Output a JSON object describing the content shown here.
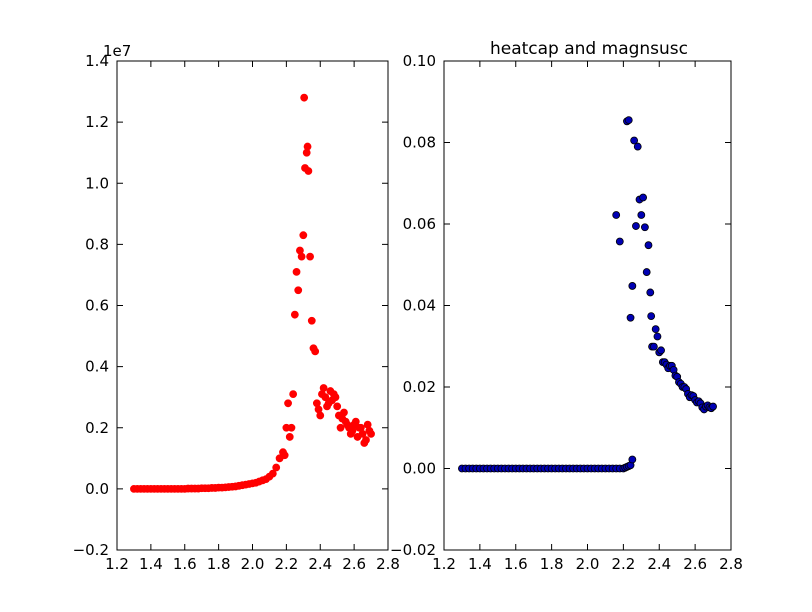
{
  "chart_data": [
    {
      "type": "scatter",
      "title": "",
      "xlabel": "",
      "ylabel": "",
      "xlim": [
        1.2,
        2.8
      ],
      "ylim": [
        -0.2,
        1.4
      ],
      "y_multiplier_label": "1e7",
      "x_ticks": [
        "1.2",
        "1.4",
        "1.6",
        "1.8",
        "2.0",
        "2.2",
        "2.4",
        "2.6",
        "2.8"
      ],
      "y_ticks": [
        "−0.2",
        "0.0",
        "0.2",
        "0.4",
        "0.6",
        "0.8",
        "1.0",
        "1.2",
        "1.4"
      ],
      "marker_color": "#ff0000",
      "marker_edge": "#ff0000",
      "grid": false,
      "series": [
        {
          "x": [
            1.3,
            1.32,
            1.34,
            1.36,
            1.38,
            1.4,
            1.42,
            1.44,
            1.46,
            1.48,
            1.5,
            1.52,
            1.54,
            1.56,
            1.58,
            1.6,
            1.62,
            1.64,
            1.66,
            1.68,
            1.7,
            1.72,
            1.74,
            1.76,
            1.78,
            1.8,
            1.82,
            1.84,
            1.86,
            1.88,
            1.9,
            1.92,
            1.94,
            1.96,
            1.98,
            2.0,
            2.02,
            2.04,
            2.06,
            2.08,
            2.1,
            2.12,
            2.14,
            2.16,
            2.18,
            2.19,
            2.2,
            2.21,
            2.22,
            2.23,
            2.24,
            2.25,
            2.26,
            2.27,
            2.28,
            2.29,
            2.3,
            2.305,
            2.31,
            2.32,
            2.325,
            2.33,
            2.34,
            2.35,
            2.36,
            2.37,
            2.38,
            2.39,
            2.4,
            2.41,
            2.42,
            2.43,
            2.44,
            2.45,
            2.46,
            2.47,
            2.48,
            2.49,
            2.5,
            2.51,
            2.52,
            2.53,
            2.54,
            2.55,
            2.56,
            2.57,
            2.58,
            2.59,
            2.6,
            2.61,
            2.62,
            2.63,
            2.64,
            2.65,
            2.66,
            2.67,
            2.68,
            2.69,
            2.7
          ],
          "y": [
            0.0,
            0.0,
            0.0,
            0.0,
            0.0,
            0.0,
            0.0,
            0.0,
            0.0,
            0.0,
            0.0,
            0.0,
            0.0,
            0.0,
            0.0,
            0.0,
            0.001,
            0.001,
            0.001,
            0.001,
            0.002,
            0.002,
            0.002,
            0.003,
            0.003,
            0.004,
            0.004,
            0.005,
            0.006,
            0.007,
            0.008,
            0.01,
            0.012,
            0.014,
            0.016,
            0.018,
            0.02,
            0.024,
            0.028,
            0.032,
            0.04,
            0.05,
            0.07,
            0.1,
            0.12,
            0.11,
            0.2,
            0.28,
            0.17,
            0.2,
            0.31,
            0.57,
            0.71,
            0.65,
            0.78,
            0.76,
            0.83,
            1.28,
            1.05,
            1.1,
            1.12,
            1.04,
            0.76,
            0.55,
            0.46,
            0.45,
            0.28,
            0.26,
            0.24,
            0.31,
            0.33,
            0.3,
            0.27,
            0.28,
            0.32,
            0.29,
            0.31,
            0.3,
            0.27,
            0.24,
            0.2,
            0.23,
            0.25,
            0.22,
            0.21,
            0.2,
            0.18,
            0.19,
            0.21,
            0.22,
            0.17,
            0.2,
            0.2,
            0.18,
            0.15,
            0.16,
            0.21,
            0.19,
            0.18
          ]
        }
      ]
    },
    {
      "type": "scatter",
      "title": "heatcap and magnsusc",
      "xlabel": "",
      "ylabel": "",
      "xlim": [
        1.2,
        2.8
      ],
      "ylim": [
        -0.02,
        0.1
      ],
      "x_ticks": [
        "1.2",
        "1.4",
        "1.6",
        "1.8",
        "2.0",
        "2.2",
        "2.4",
        "2.6",
        "2.8"
      ],
      "y_ticks": [
        "−0.02",
        "0.00",
        "0.02",
        "0.04",
        "0.06",
        "0.08",
        "0.10"
      ],
      "marker_color": "#0000b3",
      "marker_edge": "#000000",
      "grid": false,
      "series": [
        {
          "x": [
            1.3,
            1.32,
            1.34,
            1.36,
            1.38,
            1.4,
            1.42,
            1.44,
            1.46,
            1.48,
            1.5,
            1.52,
            1.54,
            1.56,
            1.58,
            1.6,
            1.62,
            1.64,
            1.66,
            1.68,
            1.7,
            1.72,
            1.74,
            1.76,
            1.78,
            1.8,
            1.82,
            1.84,
            1.86,
            1.88,
            1.9,
            1.92,
            1.94,
            1.96,
            1.98,
            2.0,
            2.02,
            2.04,
            2.06,
            2.08,
            2.1,
            2.12,
            2.14,
            2.16,
            2.18,
            2.2,
            2.21,
            2.22,
            2.23,
            2.24,
            2.25,
            2.16,
            2.18,
            2.22,
            2.23,
            2.24,
            2.25,
            2.26,
            2.27,
            2.28,
            2.29,
            2.3,
            2.31,
            2.32,
            2.33,
            2.34,
            2.35,
            2.355,
            2.36,
            2.37,
            2.38,
            2.39,
            2.4,
            2.41,
            2.42,
            2.43,
            2.44,
            2.45,
            2.46,
            2.47,
            2.48,
            2.49,
            2.5,
            2.51,
            2.52,
            2.53,
            2.54,
            2.55,
            2.56,
            2.57,
            2.58,
            2.59,
            2.6,
            2.61,
            2.62,
            2.63,
            2.64,
            2.65,
            2.66,
            2.67,
            2.68,
            2.69,
            2.7
          ],
          "y": [
            0.0,
            0.0,
            0.0,
            0.0,
            0.0,
            0.0,
            0.0,
            0.0,
            0.0,
            0.0,
            0.0,
            0.0,
            0.0,
            0.0,
            0.0,
            0.0,
            0.0,
            0.0,
            0.0,
            0.0,
            0.0,
            0.0,
            0.0,
            0.0,
            0.0,
            0.0,
            0.0,
            0.0,
            0.0,
            0.0,
            0.0,
            0.0,
            0.0,
            0.0,
            0.0,
            0.0,
            0.0,
            0.0,
            0.0,
            0.0,
            0.0,
            0.0,
            0.0,
            0.0,
            0.0,
            0.0,
            0.0002,
            0.0004,
            0.0006,
            0.0008,
            0.0022,
            0.0622,
            0.0557,
            0.0852,
            0.0855,
            0.037,
            0.0448,
            0.0805,
            0.0595,
            0.079,
            0.066,
            0.0622,
            0.0665,
            0.0592,
            0.0482,
            0.0548,
            0.0432,
            0.0374,
            0.0299,
            0.0299,
            0.0342,
            0.0324,
            0.0285,
            0.029,
            0.0261,
            0.0261,
            0.0255,
            0.0246,
            0.0252,
            0.0252,
            0.0242,
            0.0228,
            0.0225,
            0.0212,
            0.0208,
            0.02,
            0.02,
            0.0195,
            0.0183,
            0.0175,
            0.018,
            0.0178,
            0.0168,
            0.0162,
            0.0165,
            0.016,
            0.015,
            0.0145,
            0.0152,
            0.0155,
            0.015,
            0.0148,
            0.0152
          ]
        }
      ]
    }
  ]
}
